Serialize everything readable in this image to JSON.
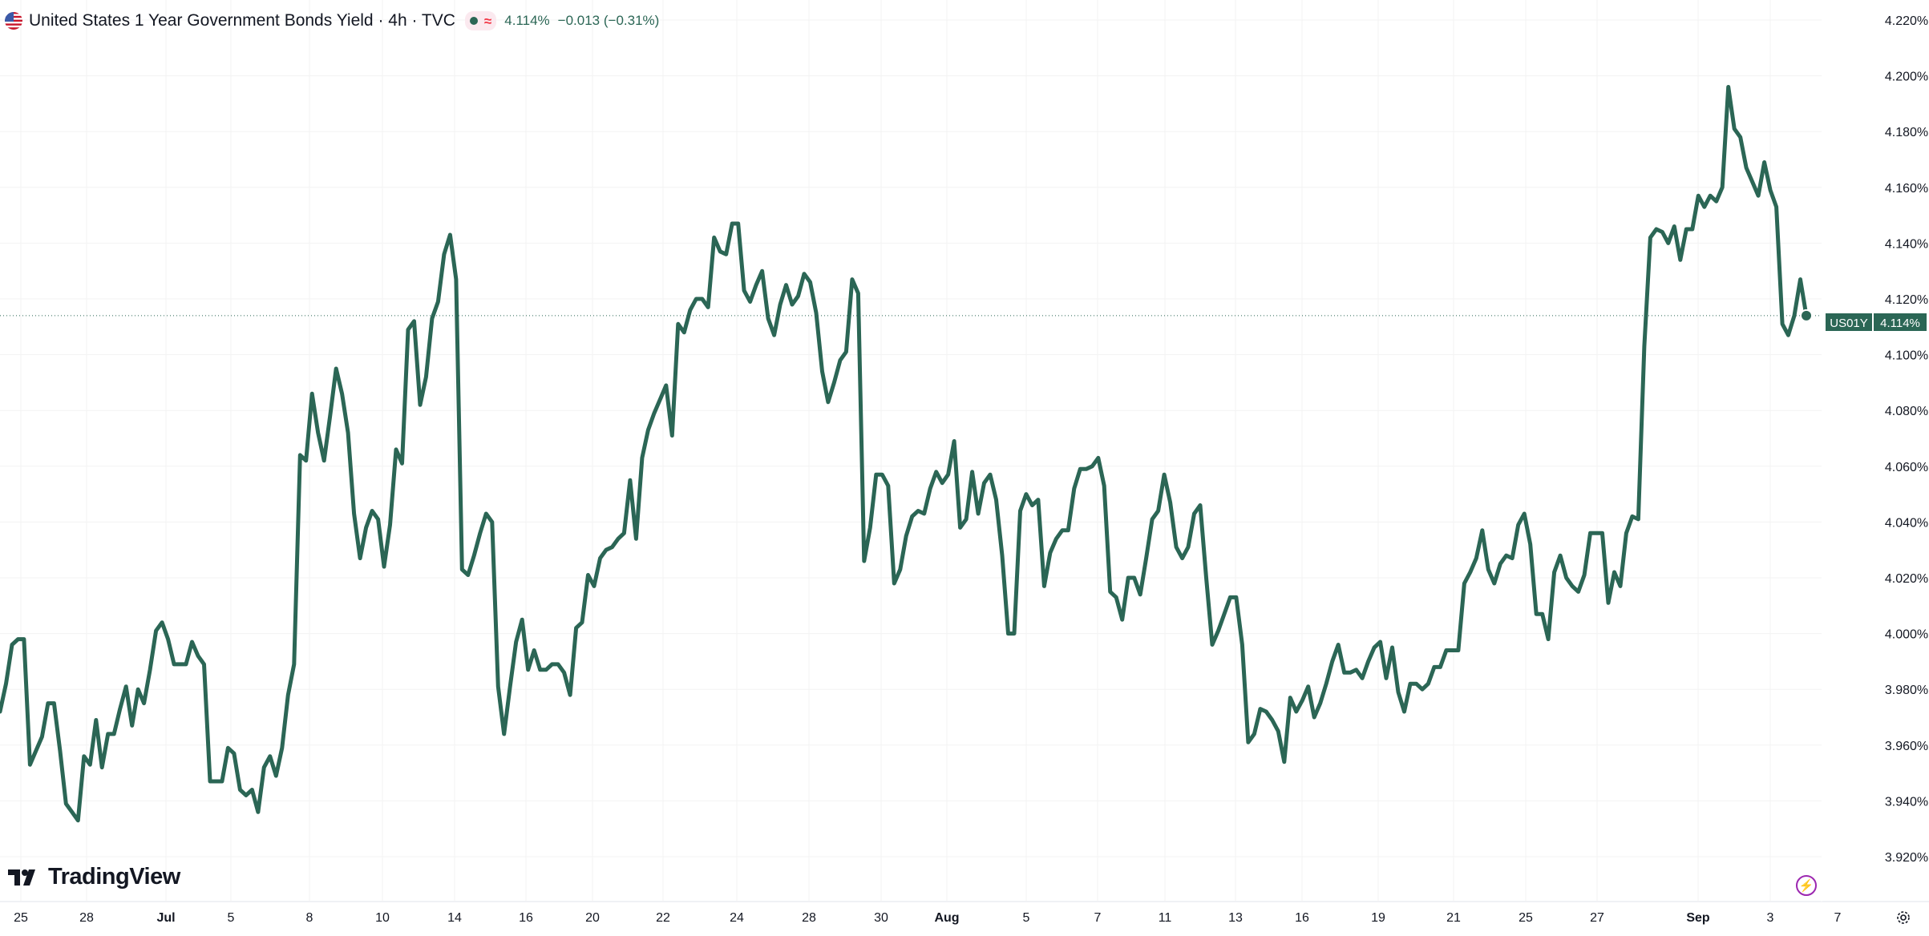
{
  "header": {
    "symbol_title": "United States 1 Year Government Bonds Yield · 4h · TVC",
    "last_value": "4.114%",
    "change": "−0.013 (−0.31%)",
    "delayed_symbol": "≈"
  },
  "branding": {
    "logo_text": "TradingView"
  },
  "price_label": {
    "ticker": "US01Y",
    "value": "4.114%"
  },
  "colors": {
    "line": "#2b6655",
    "negative": "#f23645",
    "grid": "#f3f3f3",
    "accent_purple": "#9c27b0"
  },
  "icons": {
    "flag": "us-flag-icon",
    "market": "market-status-dot-icon",
    "delayed": "delayed-data-icon",
    "logo": "tradingview-logo-icon",
    "flash": "lightning-icon",
    "settings": "gear-icon"
  },
  "chart_data": {
    "type": "line",
    "title": "United States 1 Year Government Bonds Yield · 4h · TVC",
    "xlabel": "",
    "ylabel": "",
    "ylim": [
      3.91,
      4.225
    ],
    "grid": true,
    "last_value": 4.114,
    "y_ticks": [
      "4.220%",
      "4.200%",
      "4.180%",
      "4.160%",
      "4.140%",
      "4.120%",
      "4.100%",
      "4.080%",
      "4.060%",
      "4.040%",
      "4.020%",
      "4.000%",
      "3.980%",
      "3.960%",
      "3.940%",
      "3.920%"
    ],
    "y_tick_values": [
      4.22,
      4.2,
      4.18,
      4.16,
      4.14,
      4.12,
      4.1,
      4.08,
      4.06,
      4.04,
      4.02,
      4.0,
      3.98,
      3.96,
      3.94,
      3.92
    ],
    "x_ticks": [
      {
        "label": "25",
        "bold": false
      },
      {
        "label": "28",
        "bold": false
      },
      {
        "label": "Jul",
        "bold": true
      },
      {
        "label": "5",
        "bold": false
      },
      {
        "label": "8",
        "bold": false
      },
      {
        "label": "10",
        "bold": false
      },
      {
        "label": "14",
        "bold": false
      },
      {
        "label": "16",
        "bold": false
      },
      {
        "label": "20",
        "bold": false
      },
      {
        "label": "22",
        "bold": false
      },
      {
        "label": "24",
        "bold": false
      },
      {
        "label": "28",
        "bold": false
      },
      {
        "label": "30",
        "bold": false
      },
      {
        "label": "Aug",
        "bold": true
      },
      {
        "label": "5",
        "bold": false
      },
      {
        "label": "7",
        "bold": false
      },
      {
        "label": "11",
        "bold": false
      },
      {
        "label": "13",
        "bold": false
      },
      {
        "label": "16",
        "bold": false
      },
      {
        "label": "19",
        "bold": false
      },
      {
        "label": "21",
        "bold": false
      },
      {
        "label": "25",
        "bold": false
      },
      {
        "label": "27",
        "bold": false
      },
      {
        "label": "Sep",
        "bold": true
      },
      {
        "label": "3",
        "bold": false
      },
      {
        "label": "7",
        "bold": false
      }
    ],
    "series": [
      {
        "values": [
          3.972,
          3.982,
          3.996,
          3.998,
          3.998,
          3.953,
          3.958,
          3.963,
          3.975,
          3.975,
          3.958,
          3.939,
          3.936,
          3.933,
          3.956,
          3.953,
          3.969,
          3.952,
          3.964,
          3.964,
          3.973,
          3.981,
          3.967,
          3.98,
          3.975,
          3.987,
          4.001,
          4.004,
          3.998,
          3.989,
          3.989,
          3.989,
          3.997,
          3.992,
          3.989,
          3.947,
          3.947,
          3.947,
          3.959,
          3.957,
          3.944,
          3.942,
          3.944,
          3.936,
          3.952,
          3.956,
          3.949,
          3.959,
          3.978,
          3.989,
          4.064,
          4.062,
          4.086,
          4.072,
          4.062,
          4.078,
          4.095,
          4.086,
          4.072,
          4.043,
          4.027,
          4.038,
          4.044,
          4.041,
          4.024,
          4.039,
          4.066,
          4.061,
          4.109,
          4.112,
          4.082,
          4.092,
          4.113,
          4.119,
          4.136,
          4.143,
          4.127,
          4.023,
          4.021,
          4.028,
          4.036,
          4.043,
          4.04,
          3.981,
          3.964,
          3.981,
          3.997,
          4.005,
          3.987,
          3.994,
          3.987,
          3.987,
          3.989,
          3.989,
          3.986,
          3.978,
          4.002,
          4.004,
          4.021,
          4.017,
          4.027,
          4.03,
          4.031,
          4.034,
          4.036,
          4.055,
          4.034,
          4.063,
          4.073,
          4.079,
          4.084,
          4.089,
          4.071,
          4.111,
          4.108,
          4.116,
          4.12,
          4.12,
          4.117,
          4.142,
          4.137,
          4.136,
          4.147,
          4.147,
          4.123,
          4.119,
          4.125,
          4.13,
          4.113,
          4.107,
          4.118,
          4.125,
          4.118,
          4.121,
          4.129,
          4.126,
          4.115,
          4.094,
          4.083,
          4.09,
          4.098,
          4.101,
          4.127,
          4.122,
          4.026,
          4.038,
          4.057,
          4.057,
          4.053,
          4.018,
          4.023,
          4.035,
          4.042,
          4.044,
          4.043,
          4.052,
          4.058,
          4.054,
          4.057,
          4.069,
          4.038,
          4.041,
          4.058,
          4.043,
          4.054,
          4.057,
          4.048,
          4.028,
          4.0,
          4.0,
          4.044,
          4.05,
          4.046,
          4.048,
          4.017,
          4.029,
          4.034,
          4.037,
          4.037,
          4.052,
          4.059,
          4.059,
          4.06,
          4.063,
          4.053,
          4.015,
          4.013,
          4.005,
          4.02,
          4.02,
          4.014,
          4.027,
          4.041,
          4.044,
          4.057,
          4.047,
          4.031,
          4.027,
          4.031,
          4.043,
          4.046,
          4.02,
          3.996,
          4.001,
          4.007,
          4.013,
          4.013,
          3.996,
          3.961,
          3.964,
          3.973,
          3.972,
          3.969,
          3.965,
          3.954,
          3.977,
          3.972,
          3.976,
          3.981,
          3.97,
          3.975,
          3.982,
          3.99,
          3.996,
          3.986,
          3.986,
          3.987,
          3.984,
          3.99,
          3.995,
          3.997,
          3.984,
          3.995,
          3.979,
          3.972,
          3.982,
          3.982,
          3.98,
          3.982,
          3.988,
          3.988,
          3.994,
          3.994,
          3.994,
          4.018,
          4.022,
          4.027,
          4.037,
          4.023,
          4.018,
          4.025,
          4.028,
          4.027,
          4.039,
          4.043,
          4.032,
          4.007,
          4.007,
          3.998,
          4.022,
          4.028,
          4.02,
          4.017,
          4.015,
          4.021,
          4.036,
          4.036,
          4.036,
          4.011,
          4.022,
          4.017,
          4.036,
          4.042,
          4.041,
          4.103,
          4.142,
          4.145,
          4.144,
          4.14,
          4.146,
          4.134,
          4.145,
          4.145,
          4.157,
          4.153,
          4.157,
          4.155,
          4.16,
          4.196,
          4.181,
          4.178,
          4.167,
          4.162,
          4.157,
          4.169,
          4.159,
          4.153,
          4.111,
          4.107,
          4.114,
          4.127,
          4.114
        ]
      }
    ]
  }
}
